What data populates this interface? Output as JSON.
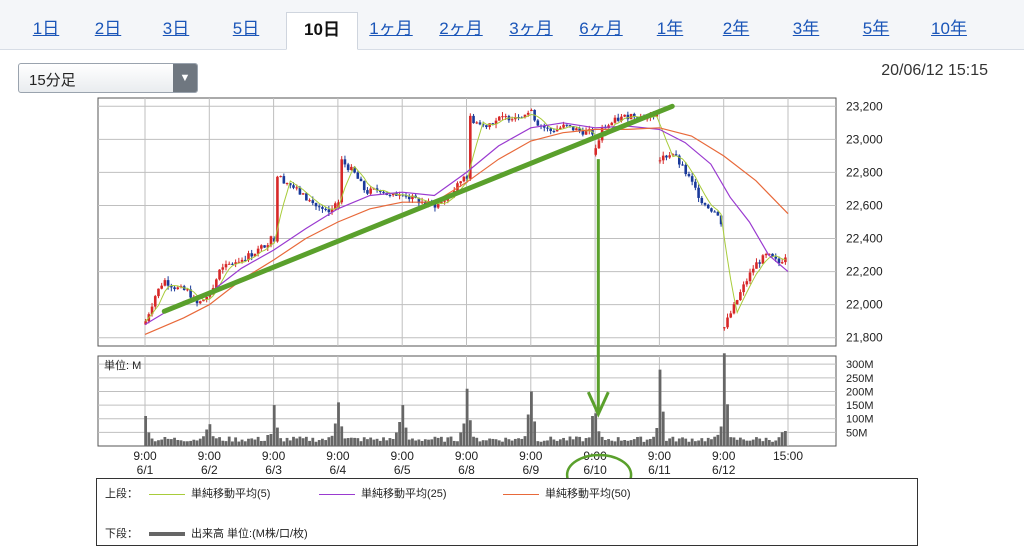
{
  "tabs": [
    {
      "label": "1日"
    },
    {
      "label": "2日"
    },
    {
      "label": "3日"
    },
    {
      "label": "5日"
    },
    {
      "label": "10日"
    },
    {
      "label": "1ヶ月"
    },
    {
      "label": "2ヶ月"
    },
    {
      "label": "3ヶ月"
    },
    {
      "label": "6ヶ月"
    },
    {
      "label": "1年"
    },
    {
      "label": "2年"
    },
    {
      "label": "3年"
    },
    {
      "label": "5年"
    },
    {
      "label": "10年"
    }
  ],
  "active_tab": "10日",
  "interval_select": {
    "value": "15分足",
    "arrow": "▼"
  },
  "timestamp": "20/06/12 15:15",
  "colors": {
    "up": "#d72828",
    "down": "#1a3a9a",
    "sma5": "#a8cc3a",
    "sma25": "#9a3ad0",
    "sma50": "#e8693a",
    "volume": "#666666",
    "annotation": "#5aa02c",
    "grid": "#bfbfbf"
  },
  "chart_data": [
    {
      "type": "candlestick",
      "y_ticks": [
        "23,200",
        "23,000",
        "22,800",
        "22,600",
        "22,400",
        "22,200",
        "22,000",
        "21,800"
      ],
      "ylim": [
        21750,
        23250
      ],
      "x_labels": [
        {
          "time": "9:00",
          "date": "6/1"
        },
        {
          "time": "9:00",
          "date": "6/2"
        },
        {
          "time": "9:00",
          "date": "6/3"
        },
        {
          "time": "9:00",
          "date": "6/4"
        },
        {
          "time": "9:00",
          "date": "6/5"
        },
        {
          "time": "9:00",
          "date": "6/8"
        },
        {
          "time": "9:00",
          "date": "6/9"
        },
        {
          "time": "9:00",
          "date": "6/10"
        },
        {
          "time": "9:00",
          "date": "6/11"
        },
        {
          "time": "9:00",
          "date": "6/12"
        },
        {
          "time": "15:00",
          "date": ""
        }
      ],
      "day_anchors": [
        {
          "day": "6/1",
          "path": [
            [
              0,
              21900
            ],
            [
              0.15,
              22050
            ],
            [
              0.3,
              22150
            ],
            [
              0.5,
              22100
            ],
            [
              0.7,
              22080
            ],
            [
              0.85,
              22000
            ],
            [
              1,
              22050
            ]
          ]
        },
        {
          "day": "6/2",
          "path": [
            [
              0,
              22050
            ],
            [
              0.15,
              22200
            ],
            [
              0.35,
              22250
            ],
            [
              0.55,
              22280
            ],
            [
              0.75,
              22320
            ],
            [
              0.9,
              22360
            ],
            [
              1,
              22400
            ]
          ]
        },
        {
          "day": "6/3",
          "path": [
            [
              0,
              22400
            ],
            [
              0.05,
              22780
            ],
            [
              0.25,
              22730
            ],
            [
              0.5,
              22650
            ],
            [
              0.75,
              22580
            ],
            [
              0.9,
              22550
            ],
            [
              1,
              22600
            ]
          ]
        },
        {
          "day": "6/4",
          "path": [
            [
              0,
              22600
            ],
            [
              0.05,
              22870
            ],
            [
              0.25,
              22800
            ],
            [
              0.45,
              22680
            ],
            [
              0.7,
              22700
            ],
            [
              0.85,
              22650
            ],
            [
              1,
              22680
            ]
          ]
        },
        {
          "day": "6/5",
          "path": [
            [
              0,
              22680
            ],
            [
              0.1,
              22650
            ],
            [
              0.3,
              22620
            ],
            [
              0.55,
              22600
            ],
            [
              0.75,
              22650
            ],
            [
              0.9,
              22720
            ],
            [
              1,
              22780
            ]
          ]
        },
        {
          "day": "6/8",
          "path": [
            [
              0,
              22780
            ],
            [
              0.05,
              23130
            ],
            [
              0.25,
              23080
            ],
            [
              0.5,
              23120
            ],
            [
              0.75,
              23140
            ],
            [
              1,
              23160
            ]
          ]
        },
        {
          "day": "6/9",
          "path": [
            [
              0,
              23160
            ],
            [
              0.1,
              23100
            ],
            [
              0.3,
              23050
            ],
            [
              0.55,
              23080
            ],
            [
              0.8,
              23050
            ],
            [
              1,
              23040
            ]
          ]
        },
        {
          "day": "6/10",
          "path": [
            [
              0,
              22930
            ],
            [
              0.1,
              23060
            ],
            [
              0.35,
              23120
            ],
            [
              0.6,
              23150
            ],
            [
              0.8,
              23130
            ],
            [
              1,
              23150
            ]
          ]
        },
        {
          "day": "6/11",
          "path": [
            [
              0,
              22880
            ],
            [
              0.2,
              22920
            ],
            [
              0.45,
              22780
            ],
            [
              0.7,
              22620
            ],
            [
              0.9,
              22560
            ],
            [
              1,
              22500
            ]
          ]
        },
        {
          "day": "6/12",
          "path": [
            [
              0,
              21870
            ],
            [
              0.15,
              21980
            ],
            [
              0.3,
              22100
            ],
            [
              0.5,
              22240
            ],
            [
              0.7,
              22300
            ],
            [
              0.9,
              22250
            ],
            [
              1,
              22300
            ]
          ]
        }
      ],
      "series": [
        {
          "name": "単純移動平均(5)",
          "color": "#a8cc3a"
        },
        {
          "name": "単純移動平均(25)",
          "color": "#9a3ad0",
          "points": [
            [
              0,
              21880
            ],
            [
              0.6,
              22020
            ],
            [
              1,
              22070
            ],
            [
              1.5,
              22220
            ],
            [
              2,
              22330
            ],
            [
              2.5,
              22460
            ],
            [
              3,
              22580
            ],
            [
              3.5,
              22660
            ],
            [
              4,
              22680
            ],
            [
              4.5,
              22660
            ],
            [
              5,
              22800
            ],
            [
              5.5,
              22960
            ],
            [
              6,
              23070
            ],
            [
              6.5,
              23100
            ],
            [
              7,
              23070
            ],
            [
              7.5,
              23080
            ],
            [
              8,
              23060
            ],
            [
              8.4,
              22980
            ],
            [
              8.8,
              22850
            ],
            [
              9.1,
              22650
            ],
            [
              9.4,
              22500
            ],
            [
              9.7,
              22300
            ],
            [
              10,
              22200
            ]
          ]
        },
        {
          "name": "単純移動平均(50)",
          "color": "#e8693a",
          "points": [
            [
              0,
              21820
            ],
            [
              0.6,
              21920
            ],
            [
              1,
              22000
            ],
            [
              1.5,
              22150
            ],
            [
              2,
              22270
            ],
            [
              2.5,
              22400
            ],
            [
              3,
              22500
            ],
            [
              3.5,
              22580
            ],
            [
              4,
              22620
            ],
            [
              4.5,
              22620
            ],
            [
              5,
              22740
            ],
            [
              5.5,
              22880
            ],
            [
              6,
              22990
            ],
            [
              6.5,
              23040
            ],
            [
              7,
              23060
            ],
            [
              7.5,
              23060
            ],
            [
              8,
              23070
            ],
            [
              8.5,
              23020
            ],
            [
              9,
              22900
            ],
            [
              9.5,
              22750
            ],
            [
              10,
              22550
            ]
          ]
        }
      ],
      "trendline": [
        [
          0.3,
          21960
        ],
        [
          8.2,
          23200
        ]
      ],
      "annotation_arrow": {
        "from_value": 22880,
        "to_value": 21900,
        "at_day": 7.05
      }
    },
    {
      "type": "bar",
      "title": "単位: M",
      "y_ticks": [
        "300M",
        "250M",
        "200M",
        "150M",
        "100M",
        "50M"
      ],
      "ylim": [
        0,
        330
      ],
      "volume_open_spikes": [
        110,
        80,
        150,
        160,
        150,
        210,
        200,
        120,
        280,
        340
      ],
      "volume_close_spikes": [
        110,
        80,
        150,
        160,
        150,
        210,
        200,
        120,
        130,
        100
      ]
    }
  ],
  "legend": {
    "upper_label": "上段：",
    "sma5": "単純移動平均(5)",
    "sma25": "単純移動平均(25)",
    "sma50": "単純移動平均(50)",
    "lower_label": "下段：",
    "volume": "出来高 単位:(M株/口/枚)"
  }
}
